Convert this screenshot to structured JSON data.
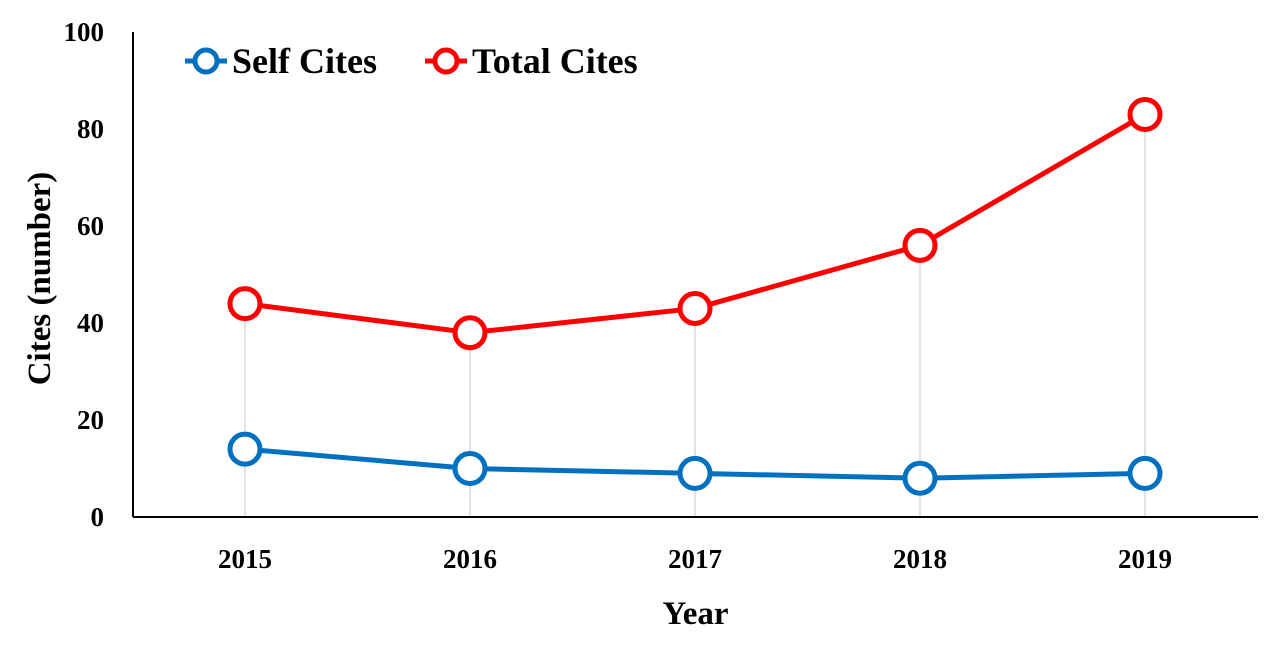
{
  "chart_data": {
    "type": "line",
    "x": [
      2015,
      2016,
      2017,
      2018,
      2019
    ],
    "categories": [
      "2015",
      "2016",
      "2017",
      "2018",
      "2019"
    ],
    "series": [
      {
        "name": "Self Cites",
        "color": "#0070c0",
        "values": [
          14,
          10,
          9,
          8,
          9
        ]
      },
      {
        "name": "Total Cites",
        "color": "#ff0000",
        "values": [
          44,
          38,
          43,
          56,
          83
        ]
      }
    ],
    "xlabel": "Year",
    "ylabel": "Cites (number)",
    "ylim": [
      0,
      100
    ],
    "yticks": [
      "0",
      "20",
      "40",
      "60",
      "80",
      "100"
    ],
    "grid": false,
    "drop_lines": true,
    "legend_position": "top-left"
  }
}
